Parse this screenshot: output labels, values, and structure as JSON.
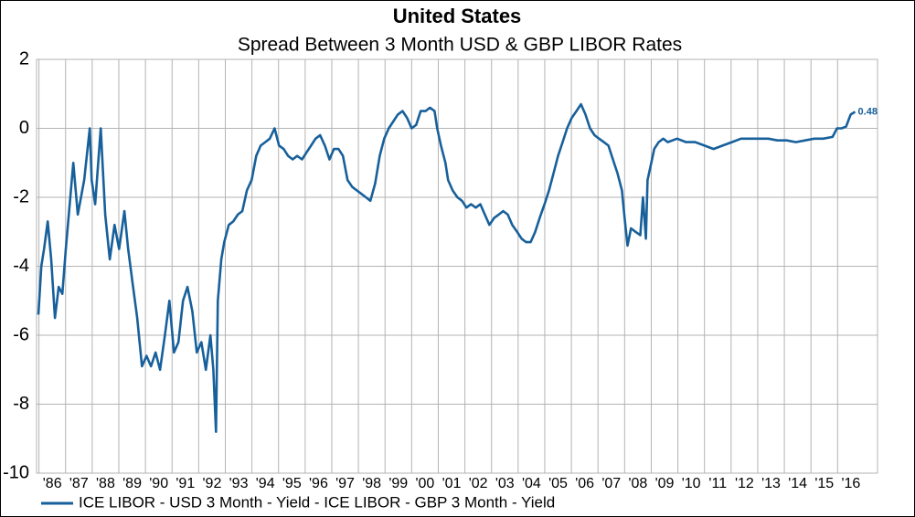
{
  "chart_data": {
    "type": "line",
    "title": "United States",
    "subtitle": "Spread Between 3 Month USD & GBP LIBOR Rates",
    "x": [
      1985.98,
      1986.09,
      1986.19,
      1986.33,
      1986.46,
      1986.6,
      1986.74,
      1986.88,
      1987.01,
      1987.29,
      1987.46,
      1987.7,
      1987.91,
      1987.98,
      1988.11,
      1988.32,
      1988.49,
      1988.66,
      1988.84,
      1989.01,
      1989.21,
      1989.35,
      1989.52,
      1989.69,
      1989.87,
      1990.04,
      1990.21,
      1990.38,
      1990.55,
      1990.73,
      1990.9,
      1991.07,
      1991.24,
      1991.41,
      1991.58,
      1991.76,
      1991.93,
      1992.1,
      1992.27,
      1992.44,
      1992.55,
      1992.65,
      1992.72,
      1992.85,
      1992.96,
      1993.13,
      1993.3,
      1993.47,
      1993.64,
      1993.81,
      1993.99,
      1994.16,
      1994.33,
      1994.5,
      1994.67,
      1994.85,
      1995.02,
      1995.19,
      1995.36,
      1995.53,
      1995.7,
      1995.88,
      1996.05,
      1996.22,
      1996.39,
      1996.56,
      1996.74,
      1996.91,
      1997.08,
      1997.25,
      1997.42,
      1997.59,
      1997.77,
      1997.94,
      1998.11,
      1998.28,
      1998.45,
      1998.63,
      1998.8,
      1998.97,
      1999.14,
      1999.31,
      1999.48,
      1999.66,
      1999.83,
      2000.0,
      2000.17,
      2000.34,
      2000.52,
      2000.69,
      2000.86,
      2000.96,
      2001.1,
      2001.27,
      2001.37,
      2001.54,
      2001.72,
      2001.89,
      2002.06,
      2002.23,
      2002.41,
      2002.58,
      2002.75,
      2002.92,
      2003.1,
      2003.27,
      2003.44,
      2003.61,
      2003.78,
      2003.96,
      2004.13,
      2004.3,
      2004.47,
      2004.64,
      2004.81,
      2004.99,
      2005.16,
      2005.33,
      2005.5,
      2005.67,
      2005.84,
      2006.01,
      2006.19,
      2006.36,
      2006.53,
      2006.7,
      2006.87,
      2007.04,
      2007.22,
      2007.39,
      2007.56,
      2007.73,
      2007.9,
      2008.0,
      2008.11,
      2008.24,
      2008.41,
      2008.59,
      2008.69,
      2008.8,
      2008.86,
      2009.0,
      2009.11,
      2009.28,
      2009.45,
      2009.62,
      2009.97,
      2010.31,
      2010.65,
      2011.0,
      2011.34,
      2011.68,
      2012.03,
      2012.37,
      2012.71,
      2013.06,
      2013.4,
      2013.74,
      2014.09,
      2014.43,
      2014.78,
      2015.12,
      2015.46,
      2015.81,
      2015.98,
      2016.15,
      2016.32,
      2016.49,
      2016.66
    ],
    "series": [
      {
        "name": "ICE LIBOR - USD 3 Month - Yield - ICE LIBOR - GBP 3 Month - Yield",
        "color": "#17609b",
        "values": [
          -5.4,
          -4.0,
          -3.5,
          -2.7,
          -3.8,
          -5.5,
          -4.6,
          -4.8,
          -3.5,
          -1.0,
          -2.5,
          -1.5,
          0.0,
          -1.5,
          -2.2,
          0.0,
          -2.5,
          -3.8,
          -2.8,
          -3.5,
          -2.4,
          -3.5,
          -4.5,
          -5.5,
          -6.9,
          -6.6,
          -6.9,
          -6.5,
          -7.0,
          -6.0,
          -5.0,
          -6.5,
          -6.2,
          -5.0,
          -4.6,
          -5.3,
          -6.5,
          -6.2,
          -7.0,
          -6.0,
          -7.0,
          -8.8,
          -5.0,
          -3.8,
          -3.3,
          -2.8,
          -2.7,
          -2.5,
          -2.4,
          -1.8,
          -1.5,
          -0.8,
          -0.5,
          -0.4,
          -0.3,
          0.0,
          -0.5,
          -0.6,
          -0.8,
          -0.9,
          -0.8,
          -0.9,
          -0.7,
          -0.5,
          -0.3,
          -0.2,
          -0.5,
          -0.9,
          -0.6,
          -0.6,
          -0.8,
          -1.5,
          -1.7,
          -1.8,
          -1.9,
          -2.0,
          -2.1,
          -1.6,
          -0.8,
          -0.3,
          0.0,
          0.2,
          0.4,
          0.5,
          0.3,
          0.0,
          0.1,
          0.5,
          0.5,
          0.6,
          0.5,
          0.0,
          -0.5,
          -1.0,
          -1.5,
          -1.8,
          -2.0,
          -2.1,
          -2.3,
          -2.2,
          -2.3,
          -2.2,
          -2.5,
          -2.8,
          -2.6,
          -2.5,
          -2.4,
          -2.5,
          -2.8,
          -3.0,
          -3.2,
          -3.3,
          -3.3,
          -3.0,
          -2.6,
          -2.2,
          -1.8,
          -1.3,
          -0.8,
          -0.4,
          0.0,
          0.3,
          0.5,
          0.7,
          0.4,
          0.0,
          -0.2,
          -0.3,
          -0.4,
          -0.5,
          -0.9,
          -1.3,
          -1.8,
          -2.6,
          -3.4,
          -2.9,
          -3.0,
          -3.1,
          -2.0,
          -3.2,
          -1.5,
          -1.0,
          -0.6,
          -0.4,
          -0.3,
          -0.4,
          -0.3,
          -0.4,
          -0.4,
          -0.5,
          -0.6,
          -0.5,
          -0.4,
          -0.3,
          -0.3,
          -0.3,
          -0.3,
          -0.35,
          -0.35,
          -0.4,
          -0.35,
          -0.3,
          -0.3,
          -0.25,
          0.0,
          0.0,
          0.05,
          0.4,
          0.48
        ]
      }
    ],
    "label_last": true,
    "xlim": [
      1985.91,
      2017.5
    ],
    "xticks": [
      {
        "value": 1986,
        "label": "'86"
      },
      {
        "value": 1987,
        "label": "'87"
      },
      {
        "value": 1988,
        "label": "'88"
      },
      {
        "value": 1989,
        "label": "'89"
      },
      {
        "value": 1990,
        "label": "'90"
      },
      {
        "value": 1991,
        "label": "'91"
      },
      {
        "value": 1992,
        "label": "'92"
      },
      {
        "value": 1993,
        "label": "'93"
      },
      {
        "value": 1994,
        "label": "'94"
      },
      {
        "value": 1995,
        "label": "'95"
      },
      {
        "value": 1996,
        "label": "'96"
      },
      {
        "value": 1997,
        "label": "'97"
      },
      {
        "value": 1998,
        "label": "'98"
      },
      {
        "value": 1999,
        "label": "'99"
      },
      {
        "value": 2000,
        "label": "'00"
      },
      {
        "value": 2001,
        "label": "'01"
      },
      {
        "value": 2002,
        "label": "'02"
      },
      {
        "value": 2003,
        "label": "'03"
      },
      {
        "value": 2004,
        "label": "'04"
      },
      {
        "value": 2005,
        "label": "'05"
      },
      {
        "value": 2006,
        "label": "'06"
      },
      {
        "value": 2007,
        "label": "'07"
      },
      {
        "value": 2008,
        "label": "'08"
      },
      {
        "value": 2009,
        "label": "'09"
      },
      {
        "value": 2010,
        "label": "'10"
      },
      {
        "value": 2011,
        "label": "'11"
      },
      {
        "value": 2012,
        "label": "'12"
      },
      {
        "value": 2013,
        "label": "'13"
      },
      {
        "value": 2014,
        "label": "'14"
      },
      {
        "value": 2015,
        "label": "'15"
      },
      {
        "value": 2016,
        "label": "'16"
      }
    ],
    "ylim": [
      -10,
      2
    ],
    "yticks": [
      -10,
      -8,
      -6,
      -4,
      -2,
      0,
      2
    ],
    "grid": true,
    "legend": "bottom-left"
  }
}
